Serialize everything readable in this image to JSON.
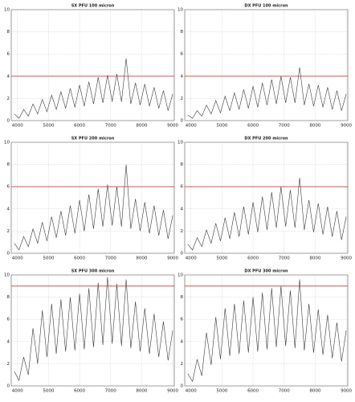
{
  "chart_data": [
    {
      "type": "line",
      "title": "SX PFU 100 micron",
      "grid": true,
      "threshold": 4,
      "threshold_color": "#d43a3a",
      "x": [
        3900,
        4050,
        4200,
        4350,
        4500,
        4650,
        4800,
        4950,
        5100,
        5250,
        5400,
        5550,
        5700,
        5850,
        6000,
        6150,
        6300,
        6450,
        6600,
        6750,
        6900,
        7050,
        7200,
        7350,
        7500,
        7650,
        7800,
        7950,
        8100,
        8250,
        8400,
        8550,
        8700,
        8850,
        9000
      ],
      "series": [
        {
          "color": "#3a3a3a",
          "values": [
            0.6,
            0.2,
            1.0,
            0.4,
            1.5,
            0.6,
            1.9,
            0.8,
            2.3,
            1.0,
            2.6,
            1.1,
            2.9,
            1.2,
            3.2,
            1.3,
            3.5,
            1.5,
            3.9,
            1.6,
            4.1,
            1.7,
            4.2,
            1.7,
            5.6,
            1.5,
            3.4,
            1.4,
            3.3,
            1.3,
            3.0,
            1.1,
            2.7,
            0.9,
            2.4
          ]
        }
      ],
      "xlim": [
        3800,
        9050
      ],
      "xticks": [
        4000,
        5000,
        6000,
        7000,
        8000,
        9000
      ],
      "ylim": [
        0,
        10
      ],
      "yticks": [
        0,
        2,
        4,
        6,
        8,
        10
      ]
    },
    {
      "type": "line",
      "title": "DX PFU 100 micron",
      "grid": true,
      "threshold": 4,
      "threshold_color": "#d43a3a",
      "x": [
        3900,
        4050,
        4200,
        4350,
        4500,
        4650,
        4800,
        4950,
        5100,
        5250,
        5400,
        5550,
        5700,
        5850,
        6000,
        6150,
        6300,
        6450,
        6600,
        6750,
        6900,
        7050,
        7200,
        7350,
        7500,
        7650,
        7800,
        7950,
        8100,
        8250,
        8400,
        8550,
        8700,
        8850,
        9000
      ],
      "series": [
        {
          "color": "#3a3a3a",
          "values": [
            0.5,
            0.2,
            0.9,
            0.4,
            1.4,
            0.6,
            1.8,
            0.7,
            2.2,
            0.9,
            2.5,
            1.0,
            2.8,
            1.1,
            3.1,
            1.2,
            3.4,
            1.4,
            3.7,
            1.5,
            4.0,
            1.6,
            3.9,
            1.6,
            4.8,
            1.4,
            3.3,
            1.3,
            3.2,
            1.2,
            3.0,
            1.0,
            2.7,
            0.9,
            2.4
          ]
        }
      ],
      "xlim": [
        3800,
        9050
      ],
      "xticks": [
        4000,
        5000,
        6000,
        7000,
        8000,
        9000
      ],
      "ylim": [
        0,
        10
      ],
      "yticks": [
        0,
        2,
        4,
        6,
        8,
        10
      ]
    },
    {
      "type": "line",
      "title": "SX PFU 200 micron",
      "grid": true,
      "threshold": 6,
      "threshold_color": "#d43a3a",
      "x": [
        3900,
        4050,
        4200,
        4350,
        4500,
        4650,
        4800,
        4950,
        5100,
        5250,
        5400,
        5550,
        5700,
        5850,
        6000,
        6150,
        6300,
        6450,
        6600,
        6750,
        6900,
        7050,
        7200,
        7350,
        7500,
        7650,
        7800,
        7950,
        8100,
        8250,
        8400,
        8550,
        8700,
        8850,
        9000
      ],
      "series": [
        {
          "color": "#3a3a3a",
          "values": [
            0.9,
            0.3,
            1.5,
            0.6,
            2.2,
            0.9,
            2.8,
            1.1,
            3.3,
            1.4,
            3.8,
            1.6,
            4.3,
            1.8,
            4.8,
            2.0,
            5.3,
            2.2,
            5.8,
            2.4,
            6.2,
            2.5,
            6.0,
            2.4,
            8.0,
            2.2,
            4.9,
            2.0,
            4.6,
            1.8,
            4.3,
            1.6,
            3.9,
            1.3,
            3.4
          ]
        }
      ],
      "xlim": [
        3800,
        9050
      ],
      "xticks": [
        4000,
        5000,
        6000,
        7000,
        8000,
        9000
      ],
      "ylim": [
        0,
        10
      ],
      "yticks": [
        0,
        2,
        4,
        6,
        8,
        10
      ]
    },
    {
      "type": "line",
      "title": "DX PFU 200 micron",
      "grid": true,
      "threshold": 6,
      "threshold_color": "#d43a3a",
      "x": [
        3900,
        4050,
        4200,
        4350,
        4500,
        4650,
        4800,
        4950,
        5100,
        5250,
        5400,
        5550,
        5700,
        5850,
        6000,
        6150,
        6300,
        6450,
        6600,
        6750,
        6900,
        7050,
        7200,
        7350,
        7500,
        7650,
        7800,
        7950,
        8100,
        8250,
        8400,
        8550,
        8700,
        8850,
        9000
      ],
      "series": [
        {
          "color": "#3a3a3a",
          "values": [
            0.8,
            0.3,
            1.4,
            0.6,
            2.1,
            0.9,
            2.7,
            1.1,
            3.2,
            1.3,
            3.7,
            1.5,
            4.2,
            1.7,
            4.6,
            1.9,
            5.1,
            2.1,
            5.5,
            2.3,
            6.0,
            2.4,
            5.7,
            2.3,
            6.8,
            2.1,
            4.8,
            1.9,
            4.5,
            1.7,
            4.2,
            1.5,
            3.8,
            1.2,
            3.3
          ]
        }
      ],
      "xlim": [
        3800,
        9050
      ],
      "xticks": [
        4000,
        5000,
        6000,
        7000,
        8000,
        9000
      ],
      "ylim": [
        0,
        10
      ],
      "yticks": [
        0,
        2,
        4,
        6,
        8,
        10
      ]
    },
    {
      "type": "line",
      "title": "SX PFU 300 micron",
      "grid": true,
      "threshold": 9,
      "threshold_color": "#d43a3a",
      "x": [
        3900,
        4050,
        4200,
        4350,
        4500,
        4650,
        4800,
        4950,
        5100,
        5250,
        5400,
        5550,
        5700,
        5850,
        6000,
        6150,
        6300,
        6450,
        6600,
        6750,
        6900,
        7050,
        7200,
        7350,
        7500,
        7650,
        7800,
        7950,
        8100,
        8250,
        8400,
        8550,
        8700,
        8850,
        9000
      ],
      "series": [
        {
          "color": "#3a3a3a",
          "values": [
            1.3,
            0.5,
            2.6,
            1.0,
            5.2,
            2.0,
            6.8,
            2.6,
            7.4,
            2.9,
            7.8,
            3.1,
            8.0,
            3.2,
            8.3,
            3.3,
            8.8,
            3.5,
            9.3,
            3.7,
            9.8,
            3.8,
            9.2,
            3.6,
            9.6,
            3.4,
            7.6,
            3.1,
            7.0,
            2.9,
            6.5,
            2.6,
            5.8,
            2.3,
            5.0
          ]
        }
      ],
      "xlim": [
        3800,
        9050
      ],
      "xticks": [
        4000,
        5000,
        6000,
        7000,
        8000,
        9000
      ],
      "ylim": [
        0,
        10
      ],
      "yticks": [
        0,
        2,
        4,
        6,
        8,
        10
      ]
    },
    {
      "type": "line",
      "title": "DX PFU 300 micron",
      "grid": true,
      "threshold": 9,
      "threshold_color": "#d43a3a",
      "x": [
        3900,
        4050,
        4200,
        4350,
        4500,
        4650,
        4800,
        4950,
        5100,
        5250,
        5400,
        5550,
        5700,
        5850,
        6000,
        6150,
        6300,
        6450,
        6600,
        6750,
        6900,
        7050,
        7200,
        7350,
        7500,
        7650,
        7800,
        7950,
        8100,
        8250,
        8400,
        8550,
        8700,
        8850,
        9000
      ],
      "series": [
        {
          "color": "#3a3a3a",
          "values": [
            1.1,
            0.4,
            2.4,
            0.9,
            4.8,
            1.9,
            6.2,
            2.4,
            7.0,
            2.7,
            7.4,
            2.9,
            7.7,
            3.0,
            8.0,
            3.1,
            8.4,
            3.3,
            8.8,
            3.5,
            9.0,
            3.6,
            8.6,
            3.4,
            9.6,
            3.2,
            7.4,
            3.0,
            6.9,
            2.8,
            6.4,
            2.5,
            5.7,
            2.2,
            5.0
          ]
        }
      ],
      "xlim": [
        3800,
        9050
      ],
      "xticks": [
        4000,
        5000,
        6000,
        7000,
        8000,
        9000
      ],
      "ylim": [
        0,
        10
      ],
      "yticks": [
        0,
        2,
        4,
        6,
        8,
        10
      ]
    }
  ]
}
